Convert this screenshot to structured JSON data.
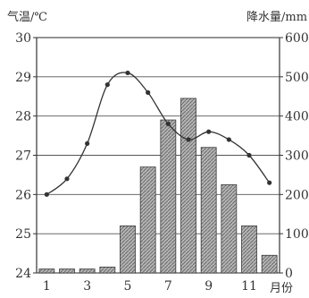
{
  "chart_data": {
    "type": "bar+line",
    "left_axis_title": "气温/℃",
    "right_axis_title": "降水量/mm",
    "x_axis_title": "月份",
    "x_tick_labels": [
      "1",
      "3",
      "5",
      "7",
      "9",
      "11"
    ],
    "months": [
      1,
      2,
      3,
      4,
      5,
      6,
      7,
      8,
      9,
      10,
      11,
      12
    ],
    "temperature": {
      "unit": "℃",
      "values": [
        26.0,
        26.4,
        27.3,
        28.8,
        29.1,
        28.6,
        27.8,
        27.4,
        27.6,
        27.4,
        27.0,
        26.3
      ],
      "ylim": [
        24,
        30
      ],
      "ticks": [
        24,
        25,
        26,
        27,
        28,
        29,
        30
      ]
    },
    "precipitation": {
      "unit": "mm",
      "values": [
        10,
        10,
        10,
        15,
        120,
        270,
        390,
        445,
        320,
        225,
        120,
        45
      ],
      "ylim": [
        0,
        600
      ],
      "ticks": [
        0,
        100,
        200,
        300,
        400,
        500,
        600
      ]
    },
    "grid": "horizontal",
    "colors": {
      "bar_fill": "#8a8a8a",
      "bar_stroke": "#3a3a3a",
      "line": "#333333",
      "point": "#333333",
      "grid": "#555555"
    }
  }
}
